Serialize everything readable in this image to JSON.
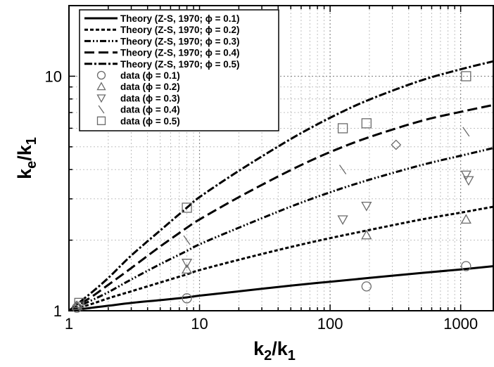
{
  "chart_data": {
    "type": "line",
    "xscale": "log",
    "yscale": "log",
    "xlim": [
      1,
      1800
    ],
    "ylim": [
      1,
      20
    ],
    "grid": true,
    "legend_position": "top-left",
    "xlabel": {
      "main": "k",
      "sub1": "2",
      "mid": "/k",
      "sub2": "1"
    },
    "ylabel": {
      "main": "k",
      "sub1": "e",
      "mid": "/k",
      "sub2": "1"
    },
    "x_ticks": [
      {
        "value": 1,
        "label": "1"
      },
      {
        "value": 10,
        "label": "10"
      },
      {
        "value": 100,
        "label": "100"
      },
      {
        "value": 1000,
        "label": "1000"
      }
    ],
    "y_ticks": [
      {
        "value": 1,
        "label": "1"
      },
      {
        "value": 10,
        "label": "10"
      }
    ],
    "series": [
      {
        "name": "Theory (Z-S, 1970; ϕ = 0.1)",
        "style": "solid",
        "phi": 0.1,
        "x": [
          1,
          1.5,
          2,
          3,
          5,
          8,
          10,
          20,
          50,
          100,
          200,
          500,
          1000,
          1800
        ],
        "y": [
          1.0,
          1.03,
          1.05,
          1.08,
          1.11,
          1.14,
          1.16,
          1.21,
          1.28,
          1.33,
          1.38,
          1.45,
          1.5,
          1.55
        ]
      },
      {
        "name": "Theory (Z-S, 1970; ϕ = 0.2)",
        "style": "dashed-short",
        "phi": 0.2,
        "x": [
          1,
          1.5,
          2,
          3,
          5,
          8,
          10,
          20,
          50,
          100,
          200,
          500,
          1000,
          1800
        ],
        "y": [
          1.0,
          1.07,
          1.13,
          1.21,
          1.32,
          1.43,
          1.49,
          1.65,
          1.87,
          2.04,
          2.21,
          2.45,
          2.62,
          2.78
        ]
      },
      {
        "name": "Theory (Z-S, 1970; ϕ = 0.3)",
        "style": "dash-dot-dot",
        "phi": 0.3,
        "x": [
          1,
          1.5,
          2,
          3,
          5,
          8,
          10,
          20,
          50,
          100,
          200,
          500,
          1000,
          1800
        ],
        "y": [
          1.0,
          1.11,
          1.2,
          1.36,
          1.58,
          1.8,
          1.92,
          2.26,
          2.78,
          3.2,
          3.62,
          4.18,
          4.58,
          4.95
        ]
      },
      {
        "name": "Theory (Z-S, 1970; ϕ = 0.4)",
        "style": "dashed-long",
        "phi": 0.4,
        "x": [
          1,
          1.5,
          2,
          3,
          5,
          8,
          10,
          20,
          50,
          100,
          200,
          500,
          1000,
          1800
        ],
        "y": [
          1.0,
          1.15,
          1.29,
          1.52,
          1.88,
          2.26,
          2.45,
          3.05,
          3.98,
          4.75,
          5.5,
          6.45,
          7.05,
          7.55
        ]
      },
      {
        "name": "Theory (Z-S, 1970; ϕ = 0.5)",
        "style": "dash-dot",
        "phi": 0.5,
        "x": [
          1,
          1.5,
          2,
          3,
          5,
          8,
          10,
          20,
          50,
          100,
          200,
          500,
          1000,
          1800
        ],
        "y": [
          1.0,
          1.2,
          1.38,
          1.72,
          2.2,
          2.75,
          3.05,
          3.95,
          5.4,
          6.65,
          7.95,
          9.6,
          10.7,
          11.6
        ]
      }
    ],
    "data_series": [
      {
        "name": "data (ϕ = 0.1)",
        "marker": "circle",
        "phi": 0.1,
        "x": [
          1.15,
          8,
          190,
          1100
        ],
        "y": [
          1.03,
          1.13,
          1.27,
          1.55
        ]
      },
      {
        "name": "data (ϕ  = 0.2)",
        "marker": "triangle-up",
        "phi": 0.2,
        "x": [
          1.15,
          8,
          190,
          1100
        ],
        "y": [
          1.05,
          1.5,
          2.1,
          2.45
        ]
      },
      {
        "name": "data (ϕ  = 0.3)",
        "marker": "triangle-down",
        "phi": 0.3,
        "x": [
          1.2,
          8,
          125,
          190,
          1100,
          1150
        ],
        "y": [
          1.05,
          1.6,
          2.45,
          2.8,
          3.8,
          3.6
        ]
      },
      {
        "name": "data (ϕ = 0.4)",
        "marker": "cross",
        "phi": 0.4,
        "x": [
          1.2,
          8,
          125,
          1100
        ],
        "y": [
          1.05,
          2.0,
          4.0,
          5.8
        ]
      },
      {
        "name": "data (ϕ = 0.5)",
        "marker": "square",
        "phi": 0.5,
        "x": [
          1.2,
          8,
          125,
          190,
          1100
        ],
        "y": [
          1.08,
          2.75,
          6.0,
          6.3,
          10.0
        ]
      },
      {
        "name": "",
        "marker": "diamond",
        "x": [
          320
        ],
        "y": [
          5.1
        ]
      }
    ]
  }
}
